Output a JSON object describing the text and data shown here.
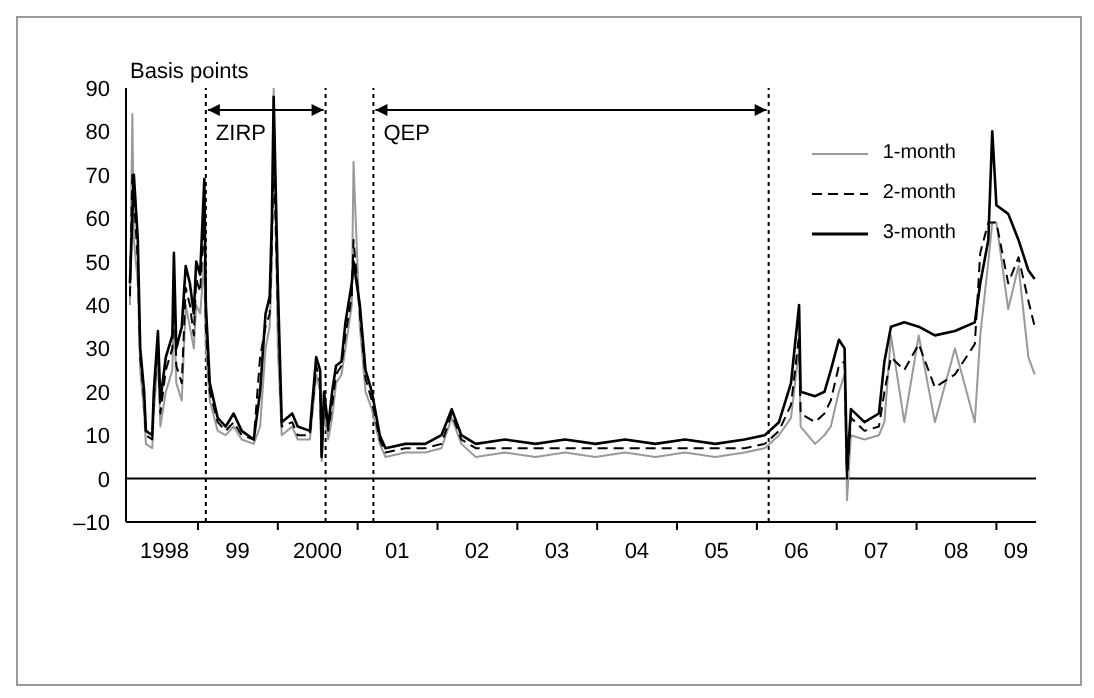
{
  "chart_data": {
    "type": "line",
    "ylabel": "Basis points",
    "x": [
      "1998-02-24",
      "1998-03-07",
      "1998-03-14",
      "1998-04-01",
      "1998-04-12",
      "1998-04-30",
      "1998-05-08",
      "1998-06-06",
      "1998-06-13",
      "1998-07-02",
      "1998-07-13",
      "1998-08-07",
      "1998-09-06",
      "1998-09-13",
      "1998-09-24",
      "1998-10-19",
      "1998-11-06",
      "1998-11-25",
      "1998-12-13",
      "1998-12-24",
      "1999-01-11",
      "1999-01-30",
      "1999-02-06",
      "1999-02-24",
      "1999-04-01",
      "1999-05-08",
      "1999-06-13",
      "1999-07-20",
      "1999-09-13",
      "1999-10-12",
      "1999-11-06",
      "1999-11-25",
      "1999-12-05",
      "1999-12-13",
      "2000-01-01",
      "2000-01-19",
      "2000-03-07",
      "2000-04-01",
      "2000-05-27",
      "2000-06-25",
      "2000-07-13",
      "2000-07-20",
      "2000-07-31",
      "2000-08-19",
      "2000-09-06",
      "2000-09-24",
      "2000-10-19",
      "2000-11-06",
      "2000-12-05",
      "2000-12-13",
      "2001-01-11",
      "2001-02-06",
      "2001-03-07",
      "2001-04-12",
      "2001-05-08",
      "2001-08-07",
      "2001-11-06",
      "2002-01-19",
      "2002-03-07",
      "2002-04-20",
      "2002-06-25",
      "2002-11-06",
      "2003-03-25",
      "2003-08-07",
      "2003-12-24",
      "2004-05-08",
      "2004-09-24",
      "2005-02-06",
      "2005-06-25",
      "2005-11-06",
      "2006-02-06",
      "2006-04-12",
      "2006-06-06",
      "2006-07-13",
      "2006-07-20",
      "2006-09-24",
      "2006-11-06",
      "2006-12-05",
      "2007-01-11",
      "2007-02-06",
      "2007-02-17",
      "2007-03-07",
      "2007-05-08",
      "2007-07-13",
      "2007-08-07",
      "2007-09-06",
      "2007-11-06",
      "2008-01-11",
      "2008-03-25",
      "2008-06-25",
      "2008-09-24",
      "2008-10-19",
      "2008-11-25",
      "2008-12-13",
      "2009-01-01",
      "2009-02-24",
      "2009-04-12",
      "2009-05-27",
      "2009-06-25"
    ],
    "series": [
      {
        "name": "1-month",
        "color": "#999999",
        "line_style": "solid",
        "values": [
          40,
          84,
          55,
          45,
          25,
          15,
          8,
          7,
          15,
          28,
          12,
          20,
          25,
          40,
          22,
          18,
          40,
          35,
          30,
          40,
          38,
          50,
          30,
          18,
          11,
          10,
          12,
          9,
          8,
          12,
          30,
          35,
          50,
          90,
          30,
          10,
          12,
          9,
          9,
          24,
          20,
          4,
          15,
          9,
          14,
          22,
          24,
          30,
          40,
          73,
          35,
          20,
          16,
          8,
          5,
          6,
          6,
          7,
          14,
          8,
          5,
          6,
          5,
          6,
          5,
          6,
          5,
          6,
          5,
          6,
          7,
          10,
          14,
          30,
          12,
          8,
          10,
          12,
          20,
          24,
          -5,
          10,
          9,
          10,
          13,
          33,
          13,
          33,
          13,
          30,
          13,
          33,
          50,
          59,
          59,
          39,
          49,
          28,
          24
        ]
      },
      {
        "name": "2-month",
        "color": "#000000",
        "line_style": "dashed",
        "values": [
          42,
          70,
          65,
          50,
          28,
          18,
          10,
          9,
          18,
          32,
          15,
          25,
          30,
          48,
          26,
          22,
          44,
          40,
          33,
          46,
          43,
          60,
          35,
          20,
          13,
          11,
          13,
          10,
          9,
          28,
          35,
          38,
          55,
          75,
          40,
          12,
          13,
          10,
          10,
          26,
          22,
          5,
          18,
          11,
          17,
          24,
          26,
          33,
          42,
          55,
          38,
          23,
          18,
          9,
          6,
          7,
          7,
          8,
          15,
          9,
          7,
          7,
          7,
          7,
          7,
          7,
          7,
          7,
          7,
          7,
          8,
          11,
          17,
          33,
          15,
          13,
          15,
          18,
          26,
          27,
          0,
          14,
          11,
          12,
          20,
          28,
          25,
          31,
          21,
          24,
          31,
          52,
          59,
          59,
          59,
          45,
          51,
          41,
          35
        ]
      },
      {
        "name": "3-month",
        "color": "#000000",
        "line_style": "solid",
        "values": [
          45,
          60,
          70,
          55,
          30,
          20,
          11,
          10,
          20,
          34,
          18,
          28,
          33,
          52,
          30,
          35,
          49,
          45,
          38,
          50,
          47,
          69,
          40,
          22,
          14,
          12,
          15,
          11,
          9,
          20,
          38,
          42,
          60,
          88,
          45,
          13,
          15,
          12,
          11,
          28,
          25,
          5,
          20,
          12,
          20,
          26,
          27,
          36,
          45,
          50,
          40,
          25,
          20,
          10,
          7,
          8,
          8,
          10,
          16,
          10,
          8,
          9,
          8,
          9,
          8,
          9,
          8,
          9,
          8,
          9,
          10,
          13,
          22,
          40,
          20,
          19,
          20,
          25,
          32,
          30,
          2,
          16,
          13,
          15,
          27,
          35,
          36,
          35,
          33,
          34,
          36,
          45,
          55,
          80,
          63,
          61,
          55,
          48,
          46
        ]
      }
    ],
    "xlim": [
      "1998-02-06",
      "2009-07-01"
    ],
    "xticks": [
      {
        "value": "1998-08-01",
        "label": "1998"
      },
      {
        "value": "1999-01-01",
        "label": null
      },
      {
        "value": "1999-07-01",
        "label": "99"
      },
      {
        "value": "2000-01-01",
        "label": null
      },
      {
        "value": "2000-07-01",
        "label": "2000"
      },
      {
        "value": "2001-01-01",
        "label": null
      },
      {
        "value": "2001-07-01",
        "label": "01"
      },
      {
        "value": "2002-01-01",
        "label": null
      },
      {
        "value": "2002-07-01",
        "label": "02"
      },
      {
        "value": "2003-01-01",
        "label": null
      },
      {
        "value": "2003-07-01",
        "label": "03"
      },
      {
        "value": "2004-01-01",
        "label": null
      },
      {
        "value": "2004-07-01",
        "label": "04"
      },
      {
        "value": "2005-01-01",
        "label": null
      },
      {
        "value": "2005-07-01",
        "label": "05"
      },
      {
        "value": "2006-01-01",
        "label": null
      },
      {
        "value": "2006-07-01",
        "label": "06"
      },
      {
        "value": "2007-01-01",
        "label": null
      },
      {
        "value": "2007-07-01",
        "label": "07"
      },
      {
        "value": "2008-01-01",
        "label": null
      },
      {
        "value": "2008-07-01",
        "label": "08"
      },
      {
        "value": "2009-01-01",
        "label": null
      },
      {
        "value": "2009-04-01",
        "label": "09"
      }
    ],
    "ylim": [
      -10,
      90
    ],
    "yticks": [
      {
        "value": -10,
        "label": "–10"
      },
      0,
      10,
      20,
      30,
      40,
      50,
      60,
      70,
      80,
      90
    ],
    "ref_lines": [
      {
        "axis": "y",
        "value": 0,
        "color": "#000000",
        "line_style": "solid"
      },
      {
        "axis": "x",
        "value": "1999-02-06",
        "color": "#000000",
        "line_style": "dotted",
        "label": "ZIRP"
      },
      {
        "axis": "x",
        "value": "2000-08-07",
        "color": "#000000",
        "line_style": "dotted"
      },
      {
        "axis": "x",
        "value": "2001-03-14",
        "color": "#000000",
        "line_style": "dotted",
        "label": "QEP"
      },
      {
        "axis": "x",
        "value": "2006-02-24",
        "color": "#000000",
        "line_style": "dotted"
      }
    ],
    "legend": "top right",
    "marker": "none"
  }
}
